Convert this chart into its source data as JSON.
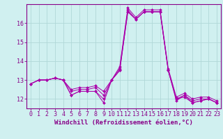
{
  "x": [
    0,
    1,
    2,
    3,
    4,
    5,
    6,
    7,
    8,
    9,
    10,
    11,
    12,
    13,
    14,
    15,
    16,
    17,
    18,
    19,
    20,
    21,
    22,
    23
  ],
  "lines": [
    [
      12.8,
      13.0,
      13.0,
      13.1,
      13.0,
      12.2,
      12.4,
      12.4,
      12.4,
      11.8,
      13.0,
      13.5,
      16.6,
      16.2,
      16.6,
      16.6,
      16.6,
      13.5,
      11.9,
      12.2,
      11.8,
      11.9,
      12.0,
      11.8
    ],
    [
      12.8,
      13.0,
      13.0,
      13.1,
      13.0,
      12.2,
      12.4,
      12.4,
      12.4,
      12.0,
      13.0,
      13.5,
      16.6,
      16.2,
      16.6,
      16.6,
      16.6,
      13.5,
      12.0,
      12.1,
      11.8,
      11.9,
      12.0,
      11.8
    ],
    [
      12.8,
      13.0,
      13.0,
      13.1,
      13.0,
      12.4,
      12.5,
      12.5,
      12.6,
      12.2,
      13.0,
      13.6,
      16.7,
      16.2,
      16.6,
      16.6,
      16.6,
      13.5,
      12.0,
      12.2,
      11.9,
      12.0,
      12.0,
      11.8
    ],
    [
      12.8,
      13.0,
      13.0,
      13.1,
      13.0,
      12.5,
      12.6,
      12.6,
      12.7,
      12.4,
      13.0,
      13.7,
      16.8,
      16.3,
      16.7,
      16.7,
      16.7,
      13.6,
      12.1,
      12.3,
      12.0,
      12.1,
      12.1,
      11.9
    ]
  ],
  "line_color": "#aa00aa",
  "marker": "D",
  "marker_size": 2.0,
  "bg_color": "#d0f0f0",
  "grid_color": "#b0d8d8",
  "axis_color": "#880088",
  "xlabel": "Windchill (Refroidissement éolien,°C)",
  "xlabel_fontsize": 6.5,
  "tick_fontsize": 6.0,
  "ylim": [
    11.5,
    17.0
  ],
  "yticks": [
    12,
    13,
    14,
    15,
    16
  ],
  "xlim": [
    -0.5,
    23.5
  ]
}
